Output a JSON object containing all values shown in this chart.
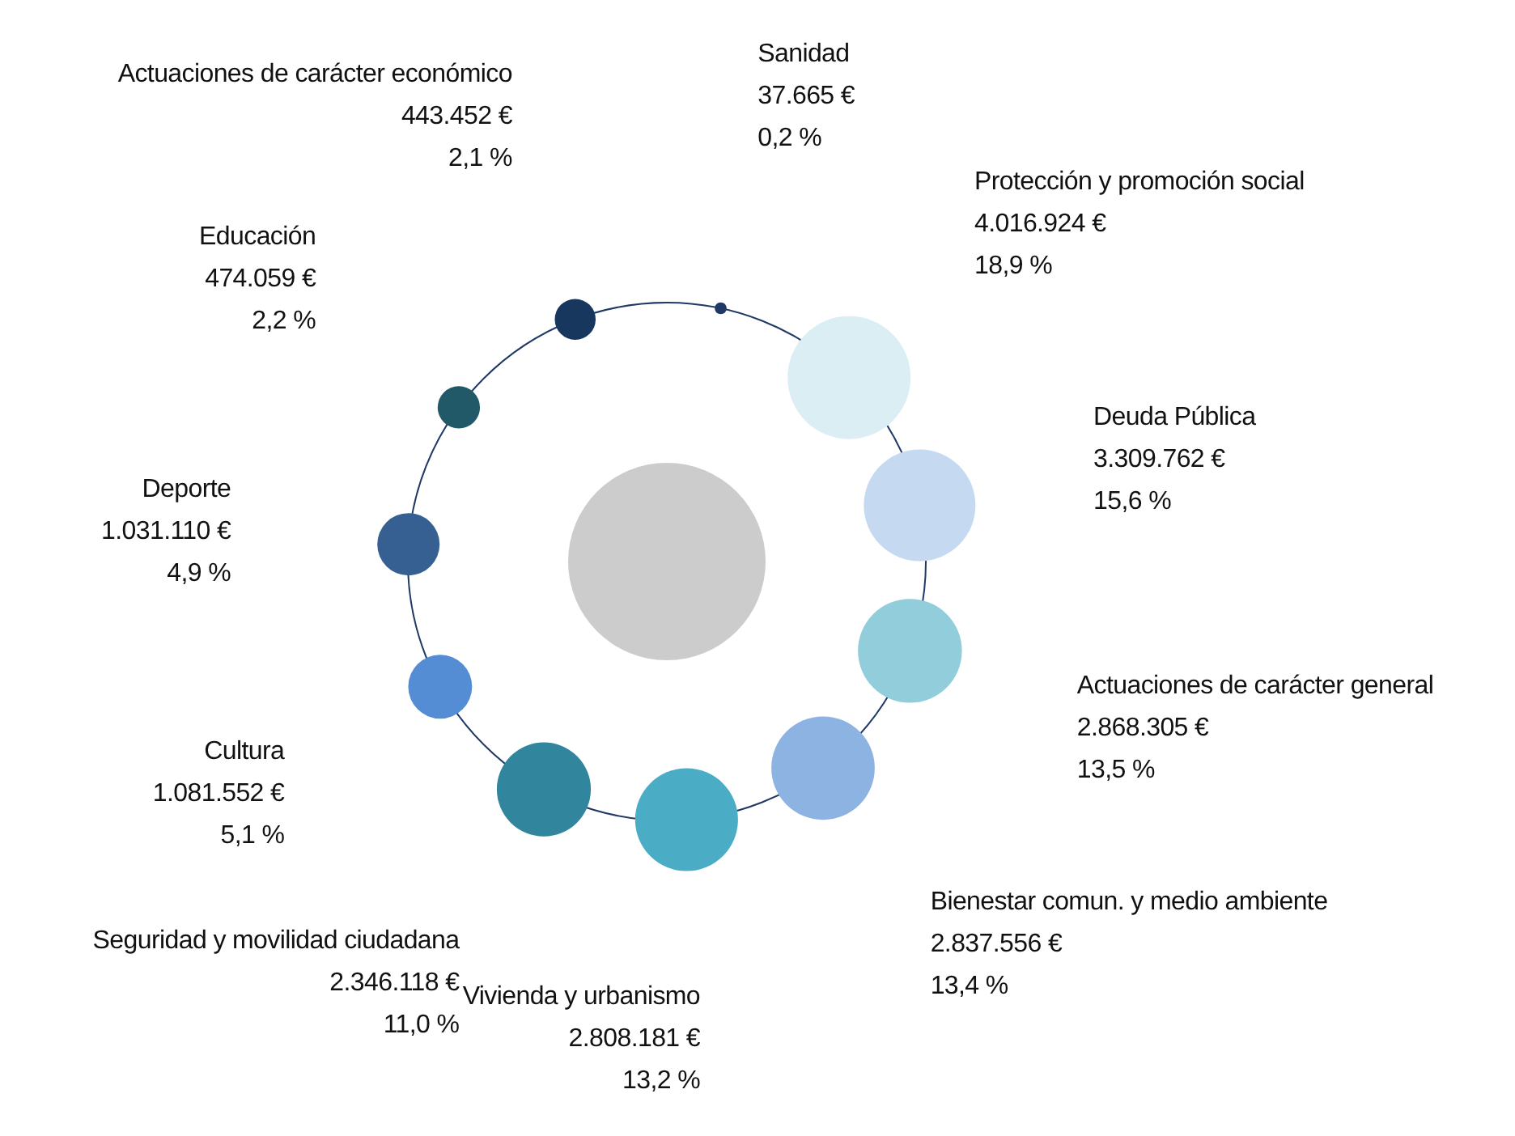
{
  "chart_data": {
    "type": "other",
    "categories": [
      "Sanidad",
      "Protección y promoción social",
      "Deuda Pública",
      "Actuaciones de carácter general",
      "Bienestar comun. y medio ambiente",
      "Vivienda y urbanismo",
      "Seguridad y movilidad ciudadana",
      "Cultura",
      "Deporte",
      "Educación",
      "Actuaciones de carácter económico"
    ],
    "values": [
      37665,
      4016924,
      3309762,
      2868305,
      2837556,
      2808181,
      2346118,
      1081552,
      1031110,
      474059,
      443452
    ],
    "value_labels": [
      "37.665 €\n0,2 %",
      "4.016.924 €\n18,9 %",
      "3.309.762 €\n15,6 %",
      "2.868.305 €\n13,5 %",
      "2.837.556 €\n13,4 %",
      "2.808.181 €\n13,2 %",
      "2.346.118 €\n11,0 %",
      "1.081.552 €\n5,1 %",
      "1.031.110 €\n4,9 %",
      "474.059 €\n2,2 %",
      "443.452 €\n2,1 %"
    ],
    "colors": [
      "#1f3864",
      "#dbeef4",
      "#c5d9f1",
      "#92cddc",
      "#8db3e2",
      "#4bacc6",
      "#31859c",
      "#548dd4",
      "#366092",
      "#215968",
      "#17375e"
    ]
  }
}
